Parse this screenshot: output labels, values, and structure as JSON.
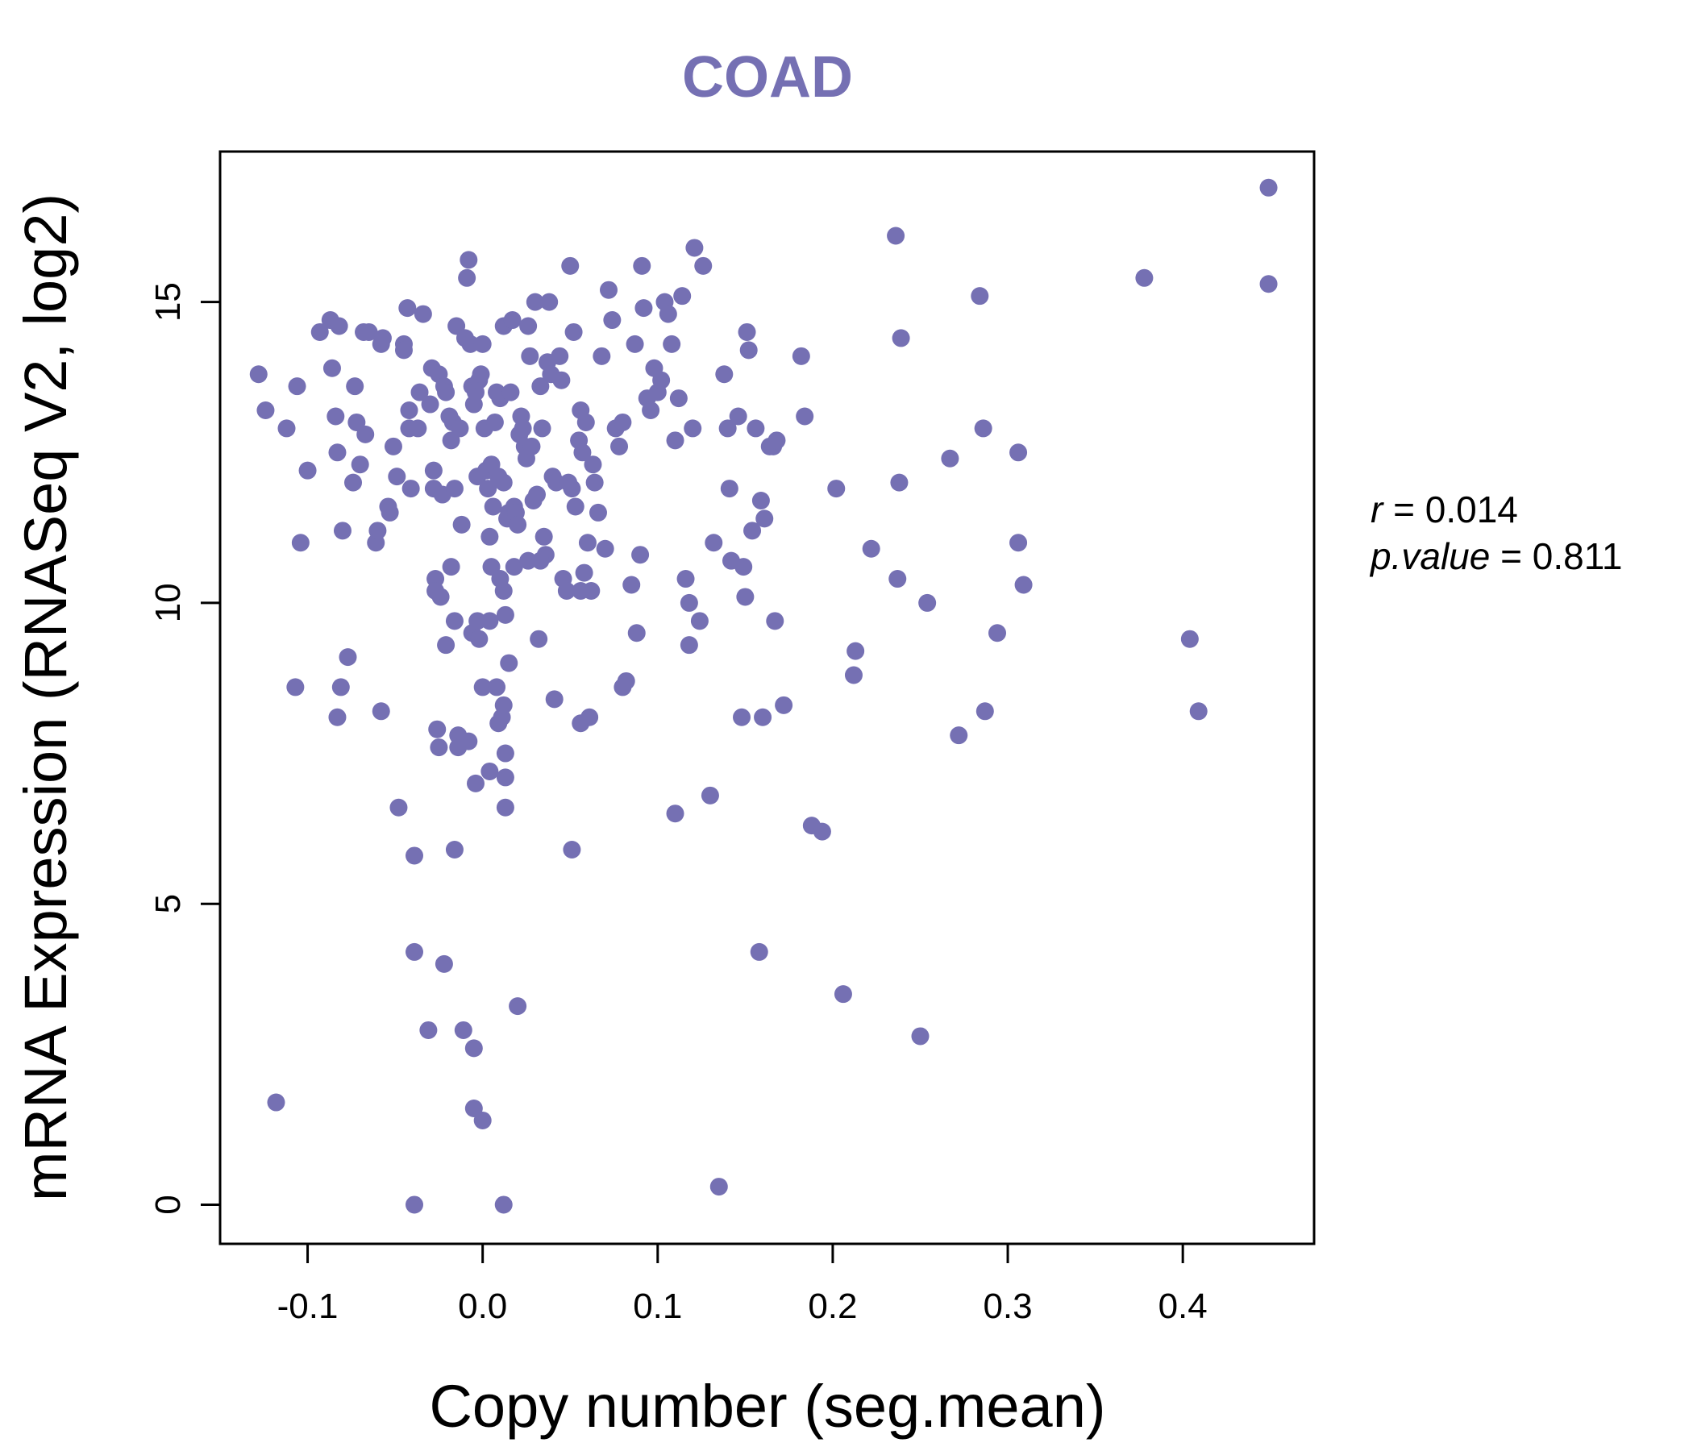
{
  "colors": {
    "accent": "#7570b3",
    "axis": "#000000"
  },
  "chart_data": {
    "type": "scatter",
    "title": "COAD",
    "xlabel": "Copy number (seg.mean)",
    "ylabel": "mRNA Expression (RNASeq V2, log2)",
    "xlim": [
      -0.15,
      0.475
    ],
    "ylim": [
      -0.65,
      17.5
    ],
    "xticks": [
      -0.1,
      0.0,
      0.1,
      0.2,
      0.3,
      0.4
    ],
    "xtick_labels": [
      "-0.1",
      "0.0",
      "0.1",
      "0.2",
      "0.3",
      "0.4"
    ],
    "yticks": [
      0,
      5,
      10,
      15
    ],
    "ytick_labels": [
      "0",
      "5",
      "10",
      "15"
    ],
    "annotation": {
      "r_label": "r",
      "r_value": "0.014",
      "p_label": "p.value",
      "p_value": "0.811"
    },
    "points": [
      [
        -0.128,
        13.8
      ],
      [
        -0.124,
        13.2
      ],
      [
        -0.112,
        12.9
      ],
      [
        -0.106,
        13.6
      ],
      [
        -0.104,
        11.0
      ],
      [
        -0.1,
        12.2
      ],
      [
        -0.093,
        14.5
      ],
      [
        -0.087,
        14.7
      ],
      [
        -0.086,
        13.9
      ],
      [
        -0.084,
        13.1
      ],
      [
        -0.083,
        12.5
      ],
      [
        -0.082,
        14.6
      ],
      [
        -0.08,
        11.2
      ],
      [
        -0.077,
        9.1
      ],
      [
        -0.074,
        12.0
      ],
      [
        -0.073,
        13.6
      ],
      [
        -0.072,
        13.0
      ],
      [
        -0.07,
        12.3
      ],
      [
        -0.068,
        14.5
      ],
      [
        -0.067,
        12.8
      ],
      [
        -0.065,
        14.5
      ],
      [
        -0.061,
        11.0
      ],
      [
        -0.06,
        11.2
      ],
      [
        -0.058,
        14.3
      ],
      [
        -0.057,
        14.4
      ],
      [
        -0.054,
        11.6
      ],
      [
        -0.053,
        11.5
      ],
      [
        -0.051,
        12.6
      ],
      [
        -0.049,
        12.1
      ],
      [
        -0.045,
        14.3
      ],
      [
        -0.045,
        14.2
      ],
      [
        -0.043,
        14.9
      ],
      [
        -0.042,
        12.9
      ],
      [
        -0.042,
        13.2
      ],
      [
        -0.041,
        11.9
      ],
      [
        -0.037,
        12.9
      ],
      [
        -0.036,
        13.5
      ],
      [
        -0.034,
        14.8
      ],
      [
        -0.03,
        13.3
      ],
      [
        -0.029,
        13.9
      ],
      [
        -0.028,
        12.2
      ],
      [
        -0.028,
        11.9
      ],
      [
        -0.027,
        10.4
      ],
      [
        -0.027,
        10.2
      ],
      [
        -0.025,
        13.8
      ],
      [
        -0.024,
        10.1
      ],
      [
        -0.023,
        11.8
      ],
      [
        -0.022,
        13.6
      ],
      [
        -0.021,
        13.5
      ],
      [
        -0.019,
        13.1
      ],
      [
        -0.018,
        12.7
      ],
      [
        -0.017,
        13.0
      ],
      [
        -0.016,
        11.9
      ],
      [
        -0.015,
        14.6
      ],
      [
        -0.013,
        12.9
      ],
      [
        -0.012,
        11.3
      ],
      [
        -0.01,
        14.4
      ],
      [
        -0.009,
        15.4
      ],
      [
        -0.008,
        15.7
      ],
      [
        -0.007,
        14.3
      ],
      [
        -0.006,
        13.6
      ],
      [
        -0.005,
        13.3
      ],
      [
        -0.004,
        13.5
      ],
      [
        -0.003,
        12.1
      ],
      [
        -0.002,
        13.7
      ],
      [
        -0.001,
        13.8
      ],
      [
        0.0,
        14.3
      ],
      [
        0.001,
        12.9
      ],
      [
        0.002,
        12.2
      ],
      [
        0.003,
        11.9
      ],
      [
        0.004,
        11.1
      ],
      [
        0.005,
        12.3
      ],
      [
        0.006,
        11.6
      ],
      [
        0.007,
        13.0
      ],
      [
        0.008,
        13.5
      ],
      [
        0.009,
        12.1
      ],
      [
        0.01,
        13.4
      ],
      [
        0.012,
        14.6
      ],
      [
        0.012,
        12.0
      ],
      [
        0.014,
        11.4
      ],
      [
        0.015,
        11.5
      ],
      [
        0.016,
        13.5
      ],
      [
        0.017,
        14.7
      ],
      [
        0.018,
        11.6
      ],
      [
        0.019,
        11.5
      ],
      [
        0.02,
        11.3
      ],
      [
        0.021,
        12.8
      ],
      [
        0.022,
        13.1
      ],
      [
        0.023,
        12.9
      ],
      [
        0.024,
        12.6
      ],
      [
        0.025,
        12.4
      ],
      [
        0.026,
        14.6
      ],
      [
        0.027,
        14.1
      ],
      [
        0.028,
        12.6
      ],
      [
        0.029,
        11.7
      ],
      [
        0.03,
        15.0
      ],
      [
        0.031,
        11.8
      ],
      [
        0.033,
        13.6
      ],
      [
        0.034,
        12.9
      ],
      [
        0.035,
        11.1
      ],
      [
        0.037,
        14.0
      ],
      [
        0.038,
        15.0
      ],
      [
        0.039,
        13.8
      ],
      [
        0.04,
        12.1
      ],
      [
        0.042,
        12.0
      ],
      [
        0.044,
        14.1
      ],
      [
        0.045,
        13.7
      ],
      [
        0.046,
        10.4
      ],
      [
        0.048,
        10.2
      ],
      [
        0.049,
        12.0
      ],
      [
        0.05,
        15.6
      ],
      [
        0.051,
        11.9
      ],
      [
        0.052,
        14.5
      ],
      [
        0.053,
        11.6
      ],
      [
        0.055,
        12.7
      ],
      [
        0.056,
        13.2
      ],
      [
        0.057,
        12.5
      ],
      [
        0.058,
        10.5
      ],
      [
        0.059,
        13.0
      ],
      [
        0.06,
        11.0
      ],
      [
        0.062,
        10.2
      ],
      [
        0.063,
        12.3
      ],
      [
        0.064,
        12.0
      ],
      [
        0.066,
        11.5
      ],
      [
        0.068,
        14.1
      ],
      [
        0.07,
        10.9
      ],
      [
        0.072,
        15.2
      ],
      [
        0.074,
        14.7
      ],
      [
        0.076,
        12.9
      ],
      [
        0.078,
        12.6
      ],
      [
        0.08,
        13.0
      ],
      [
        0.082,
        8.7
      ],
      [
        0.085,
        10.3
      ],
      [
        0.087,
        14.3
      ],
      [
        0.088,
        9.5
      ],
      [
        0.09,
        10.8
      ],
      [
        0.091,
        15.6
      ],
      [
        0.092,
        14.9
      ],
      [
        0.094,
        13.4
      ],
      [
        0.096,
        13.2
      ],
      [
        0.098,
        13.9
      ],
      [
        0.1,
        13.5
      ],
      [
        0.102,
        13.7
      ],
      [
        0.104,
        15.0
      ],
      [
        0.106,
        14.8
      ],
      [
        0.108,
        14.3
      ],
      [
        0.11,
        12.7
      ],
      [
        0.112,
        13.4
      ],
      [
        0.114,
        15.1
      ],
      [
        0.116,
        10.4
      ],
      [
        0.118,
        10.0
      ],
      [
        0.12,
        12.9
      ],
      [
        0.121,
        15.9
      ],
      [
        0.124,
        9.7
      ],
      [
        0.126,
        15.6
      ],
      [
        0.13,
        6.8
      ],
      [
        0.132,
        11.0
      ],
      [
        0.135,
        0.3
      ],
      [
        0.138,
        13.8
      ],
      [
        0.14,
        12.9
      ],
      [
        0.141,
        11.9
      ],
      [
        0.142,
        10.7
      ],
      [
        0.146,
        13.1
      ],
      [
        0.148,
        8.1
      ],
      [
        0.149,
        10.6
      ],
      [
        0.15,
        10.1
      ],
      [
        0.151,
        14.5
      ],
      [
        0.152,
        14.2
      ],
      [
        0.154,
        11.2
      ],
      [
        0.156,
        12.9
      ],
      [
        0.158,
        4.2
      ],
      [
        0.159,
        11.7
      ],
      [
        0.16,
        8.1
      ],
      [
        0.161,
        11.4
      ],
      [
        0.164,
        12.6
      ],
      [
        0.166,
        12.6
      ],
      [
        0.167,
        9.7
      ],
      [
        0.168,
        12.7
      ],
      [
        0.172,
        8.3
      ],
      [
        0.182,
        14.1
      ],
      [
        0.184,
        13.1
      ],
      [
        0.188,
        6.3
      ],
      [
        0.194,
        6.2
      ],
      [
        0.202,
        11.9
      ],
      [
        0.206,
        3.5
      ],
      [
        0.212,
        8.8
      ],
      [
        0.213,
        9.2
      ],
      [
        0.222,
        10.9
      ],
      [
        0.236,
        16.1
      ],
      [
        0.237,
        10.4
      ],
      [
        0.238,
        12.0
      ],
      [
        0.239,
        14.4
      ],
      [
        0.25,
        2.8
      ],
      [
        0.254,
        10.0
      ],
      [
        0.267,
        12.4
      ],
      [
        0.272,
        7.8
      ],
      [
        0.284,
        15.1
      ],
      [
        0.286,
        12.9
      ],
      [
        0.287,
        8.2
      ],
      [
        0.294,
        9.5
      ],
      [
        0.306,
        12.5
      ],
      [
        0.306,
        11.0
      ],
      [
        0.309,
        10.3
      ],
      [
        0.378,
        15.4
      ],
      [
        0.404,
        9.4
      ],
      [
        0.409,
        8.2
      ],
      [
        0.449,
        16.9
      ],
      [
        0.449,
        15.3
      ],
      [
        -0.118,
        1.7
      ],
      [
        -0.107,
        8.6
      ],
      [
        -0.083,
        8.1
      ],
      [
        -0.081,
        8.6
      ],
      [
        -0.058,
        8.2
      ],
      [
        -0.048,
        6.6
      ],
      [
        -0.039,
        5.8
      ],
      [
        -0.039,
        4.2
      ],
      [
        -0.039,
        0.0
      ],
      [
        -0.031,
        2.9
      ],
      [
        -0.026,
        7.9
      ],
      [
        -0.025,
        7.6
      ],
      [
        -0.022,
        4.0
      ],
      [
        -0.021,
        9.3
      ],
      [
        -0.016,
        9.7
      ],
      [
        -0.016,
        5.9
      ],
      [
        -0.014,
        7.8
      ],
      [
        -0.014,
        7.6
      ],
      [
        -0.011,
        2.9
      ],
      [
        -0.008,
        7.7
      ],
      [
        -0.006,
        9.5
      ],
      [
        -0.005,
        2.6
      ],
      [
        -0.005,
        1.6
      ],
      [
        -0.004,
        7.0
      ],
      [
        -0.003,
        9.7
      ],
      [
        -0.002,
        9.4
      ],
      [
        0.0,
        1.4
      ],
      [
        0.0,
        8.6
      ],
      [
        0.004,
        7.2
      ],
      [
        0.008,
        8.6
      ],
      [
        0.009,
        8.0
      ],
      [
        0.011,
        8.1
      ],
      [
        0.012,
        8.3
      ],
      [
        0.012,
        0.0
      ],
      [
        0.013,
        7.5
      ],
      [
        0.013,
        7.1
      ],
      [
        0.013,
        6.6
      ],
      [
        0.015,
        9.0
      ],
      [
        0.02,
        3.3
      ],
      [
        0.041,
        8.4
      ],
      [
        0.051,
        5.9
      ],
      [
        0.056,
        8.0
      ],
      [
        0.061,
        8.1
      ],
      [
        0.11,
        6.5
      ],
      [
        0.118,
        9.3
      ],
      [
        0.08,
        8.6
      ],
      [
        0.018,
        10.6
      ],
      [
        0.005,
        10.6
      ],
      [
        0.012,
        10.2
      ],
      [
        0.026,
        10.7
      ],
      [
        -0.018,
        10.6
      ],
      [
        0.01,
        10.4
      ],
      [
        0.032,
        9.4
      ],
      [
        0.036,
        10.8
      ],
      [
        0.004,
        9.7
      ],
      [
        0.013,
        9.8
      ],
      [
        0.033,
        10.7
      ],
      [
        0.056,
        10.2
      ]
    ]
  }
}
